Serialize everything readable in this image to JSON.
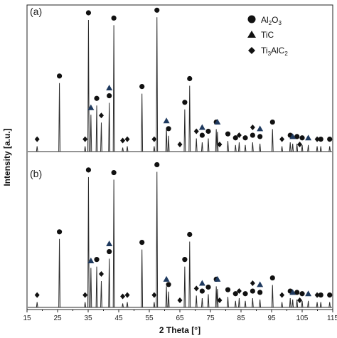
{
  "chart_data": {
    "type": "line",
    "title": "",
    "xlabel": "2 Theta [°]",
    "ylabel": "Intensity [a.u.]",
    "xlim": [
      15,
      115
    ],
    "x_ticks": [
      "15",
      "25",
      "35",
      "45",
      "55",
      "65",
      "75",
      "85",
      "95",
      "105",
      "115"
    ],
    "y_ticks_shown": false,
    "legend_position": "top-right",
    "legend": [
      {
        "marker": "circle",
        "name": "Al",
        "sub1": "2",
        "mid": "O",
        "sub2": "3"
      },
      {
        "marker": "triangle",
        "name": "TiC"
      },
      {
        "marker": "diamond",
        "name": "Ti",
        "sub1": "3",
        "mid": "AlC",
        "sub2": "2"
      }
    ],
    "panels": [
      {
        "label": "(a)",
        "peaks": [
          [
            18.3,
            0.04
          ],
          [
            25.6,
            0.52
          ],
          [
            34.0,
            0.04
          ],
          [
            35.1,
            1.0
          ],
          [
            35.9,
            0.28
          ],
          [
            37.8,
            0.35
          ],
          [
            39.3,
            0.22
          ],
          [
            41.9,
            0.37
          ],
          [
            43.4,
            0.96
          ],
          [
            46.3,
            0.03
          ],
          [
            47.8,
            0.04
          ],
          [
            52.6,
            0.44
          ],
          [
            56.6,
            0.04
          ],
          [
            57.5,
            1.02
          ],
          [
            60.6,
            0.18
          ],
          [
            61.3,
            0.12
          ],
          [
            66.6,
            0.32
          ],
          [
            68.2,
            0.5
          ],
          [
            70.4,
            0.1
          ],
          [
            72.3,
            0.07
          ],
          [
            74.3,
            0.1
          ],
          [
            76.9,
            0.17
          ],
          [
            77.3,
            0.15
          ],
          [
            80.7,
            0.08
          ],
          [
            83.2,
            0.05
          ],
          [
            84.4,
            0.07
          ],
          [
            86.4,
            0.05
          ],
          [
            88.8,
            0.07
          ],
          [
            91.2,
            0.06
          ],
          [
            95.3,
            0.17
          ],
          [
            98.4,
            0.04
          ],
          [
            101.1,
            0.07
          ],
          [
            101.9,
            0.06
          ],
          [
            103.3,
            0.06
          ],
          [
            105.0,
            0.05
          ],
          [
            107.0,
            0.05
          ],
          [
            109.9,
            0.04
          ],
          [
            111.1,
            0.04
          ],
          [
            114.0,
            0.04
          ]
        ],
        "markers": [
          {
            "type": "circle",
            "x": [
              25.6,
              35.1,
              37.8,
              41.9,
              43.4,
              52.6,
              57.5,
              61.3,
              66.6,
              68.2,
              72.3,
              74.3,
              76.9,
              80.7,
              83.2,
              86.4,
              88.8,
              91.2,
              95.3,
              101.1,
              103.3,
              105.0,
              111.1,
              114.0
            ]
          },
          {
            "type": "triangle",
            "x": [
              35.9,
              41.9,
              60.6,
              72.3,
              77.3,
              91.2,
              101.9,
              107.0
            ]
          },
          {
            "type": "diamond",
            "x": [
              18.3,
              34.0,
              39.3,
              46.3,
              47.8,
              56.6,
              65.0,
              70.4,
              78.0,
              84.4,
              88.8,
              98.4,
              104.2,
              109.9
            ]
          }
        ]
      },
      {
        "label": "(b)",
        "peaks": [
          [
            18.3,
            0.04
          ],
          [
            25.6,
            0.52
          ],
          [
            34.0,
            0.04
          ],
          [
            35.1,
            0.99
          ],
          [
            35.9,
            0.3
          ],
          [
            37.8,
            0.31
          ],
          [
            39.3,
            0.2
          ],
          [
            41.9,
            0.37
          ],
          [
            43.4,
            0.97
          ],
          [
            46.3,
            0.03
          ],
          [
            47.8,
            0.04
          ],
          [
            52.6,
            0.44
          ],
          [
            56.6,
            0.04
          ],
          [
            57.5,
            1.03
          ],
          [
            60.6,
            0.16
          ],
          [
            61.3,
            0.12
          ],
          [
            66.6,
            0.31
          ],
          [
            68.2,
            0.5
          ],
          [
            70.4,
            0.09
          ],
          [
            72.3,
            0.07
          ],
          [
            74.3,
            0.1
          ],
          [
            76.9,
            0.16
          ],
          [
            77.3,
            0.14
          ],
          [
            80.7,
            0.08
          ],
          [
            83.2,
            0.05
          ],
          [
            84.4,
            0.07
          ],
          [
            86.4,
            0.05
          ],
          [
            88.8,
            0.07
          ],
          [
            91.2,
            0.06
          ],
          [
            95.3,
            0.17
          ],
          [
            98.4,
            0.04
          ],
          [
            101.1,
            0.07
          ],
          [
            101.9,
            0.06
          ],
          [
            103.3,
            0.06
          ],
          [
            105.0,
            0.05
          ],
          [
            107.0,
            0.05
          ],
          [
            109.9,
            0.04
          ],
          [
            111.1,
            0.04
          ],
          [
            114.0,
            0.04
          ]
        ],
        "markers": [
          {
            "type": "circle",
            "x": [
              25.6,
              35.1,
              37.8,
              41.9,
              43.4,
              52.6,
              57.5,
              61.3,
              66.6,
              68.2,
              72.3,
              74.3,
              76.9,
              80.7,
              83.2,
              86.4,
              88.8,
              91.2,
              95.3,
              101.1,
              103.3,
              105.0,
              111.1,
              114.0
            ]
          },
          {
            "type": "triangle",
            "x": [
              35.9,
              41.9,
              60.6,
              72.3,
              77.3,
              91.2,
              101.9,
              107.0
            ]
          },
          {
            "type": "diamond",
            "x": [
              18.3,
              34.0,
              39.3,
              46.3,
              47.8,
              56.6,
              65.0,
              70.4,
              78.0,
              84.4,
              88.8,
              98.4,
              104.2,
              109.9
            ]
          }
        ]
      }
    ],
    "colors": {
      "line": "#2a2a2a",
      "marker": "#111111",
      "triangle": "#1f3a5f"
    }
  }
}
